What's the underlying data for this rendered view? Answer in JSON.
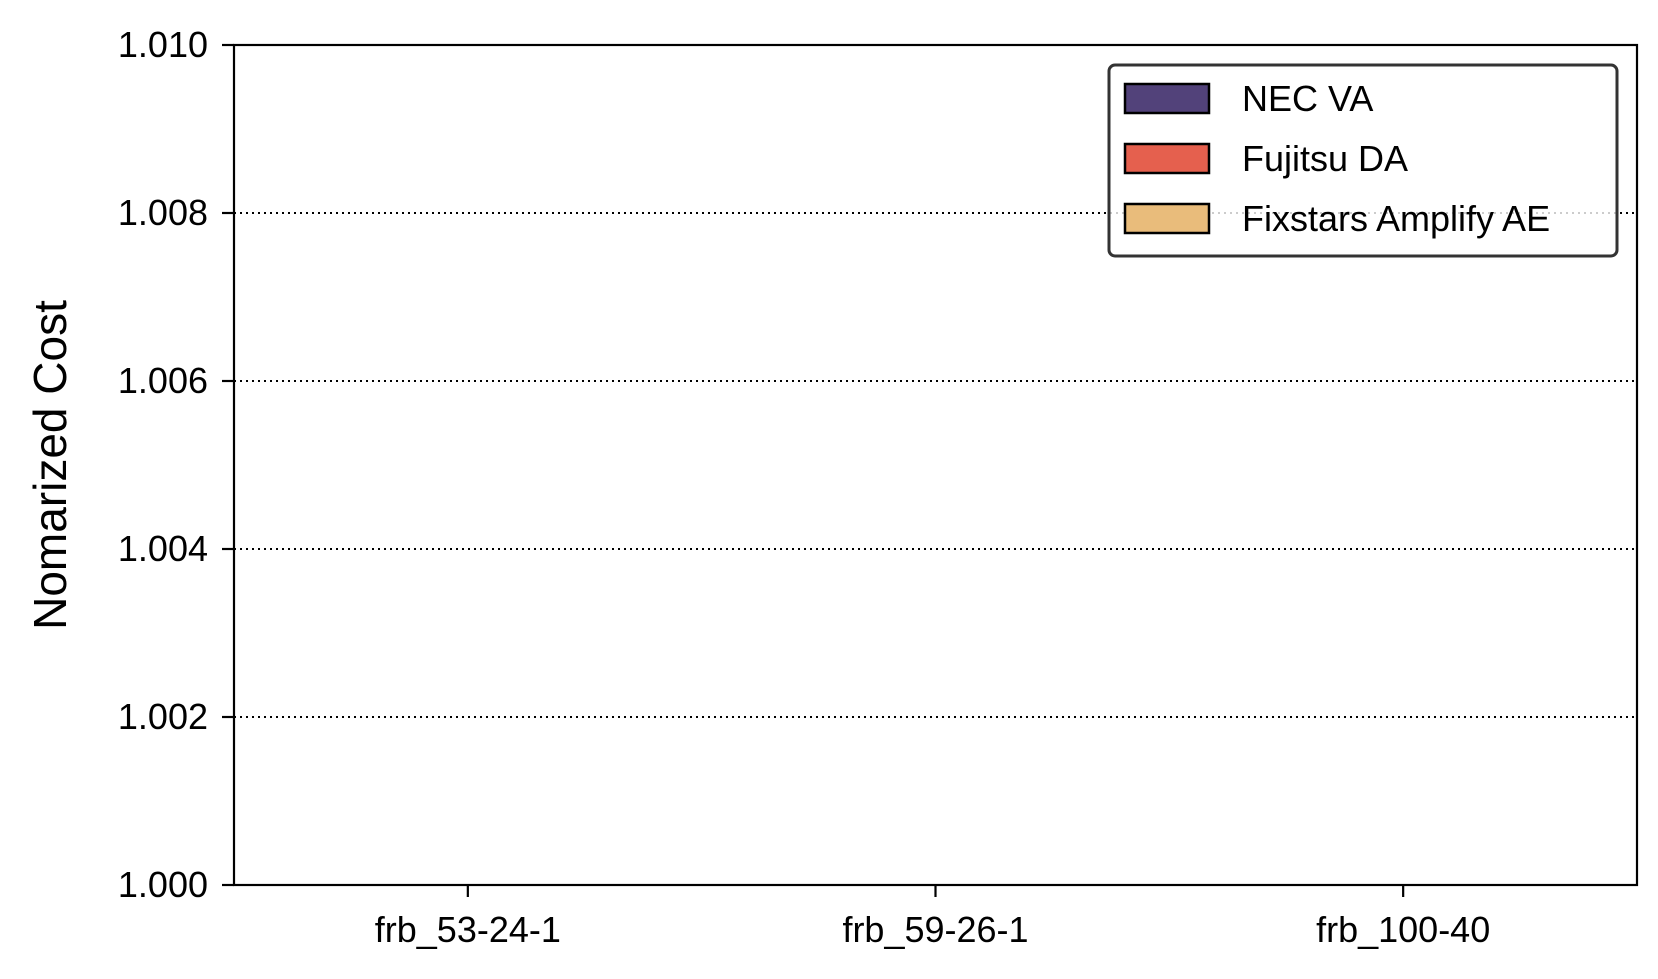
{
  "chart_data": {
    "type": "bar",
    "title": "",
    "xlabel": "",
    "ylabel": "Nomarized Cost",
    "categories": [
      "frb_53-24-1",
      "frb_59-26-1",
      "frb_100-40"
    ],
    "series": [
      {
        "name": "NEC VA",
        "color": "#52427a",
        "values": [
          1.0,
          1.0,
          1.0
        ]
      },
      {
        "name": "Fujitsu DA",
        "color": "#e5604e",
        "values": [
          1.0,
          1.0,
          1.0
        ]
      },
      {
        "name": "Fixstars Amplify AE",
        "color": "#e9bc7b",
        "values": [
          1.0,
          1.0,
          1.0
        ]
      }
    ],
    "ylim": [
      1.0,
      1.01
    ],
    "yticks": [
      "1.000",
      "1.002",
      "1.004",
      "1.006",
      "1.008",
      "1.010"
    ],
    "grid": "y-dotted",
    "legend_position": "top-right"
  }
}
